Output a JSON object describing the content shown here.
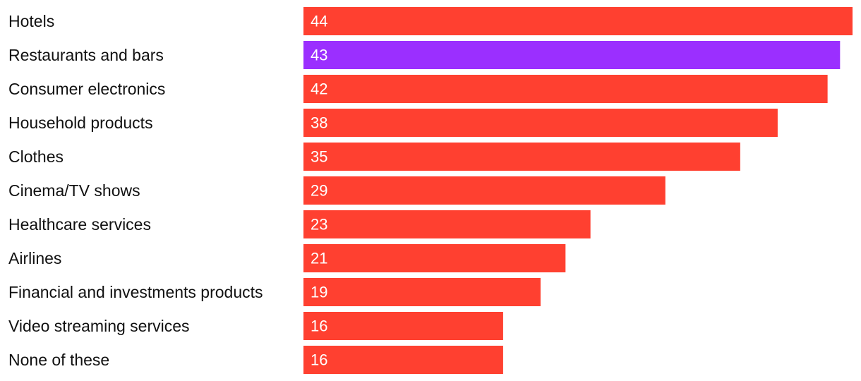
{
  "chart_data": {
    "type": "bar",
    "orientation": "horizontal",
    "title": "",
    "xlabel": "",
    "ylabel": "",
    "xlim": [
      0,
      44
    ],
    "grid": false,
    "categories": [
      "Hotels",
      "Restaurants and bars",
      "Consumer electronics",
      "Household products",
      "Clothes",
      "Cinema/TV shows",
      "Healthcare services",
      "Airlines",
      "Financial and investments products",
      "Video streaming services",
      "None of these"
    ],
    "values": [
      44,
      43,
      42,
      38,
      35,
      29,
      23,
      21,
      19,
      16,
      16
    ],
    "highlight_index": 1,
    "colors": {
      "bar": "#ff4030",
      "highlight": "#9b2fff",
      "value_label": "#ffffff",
      "category_label": "#111111"
    }
  }
}
